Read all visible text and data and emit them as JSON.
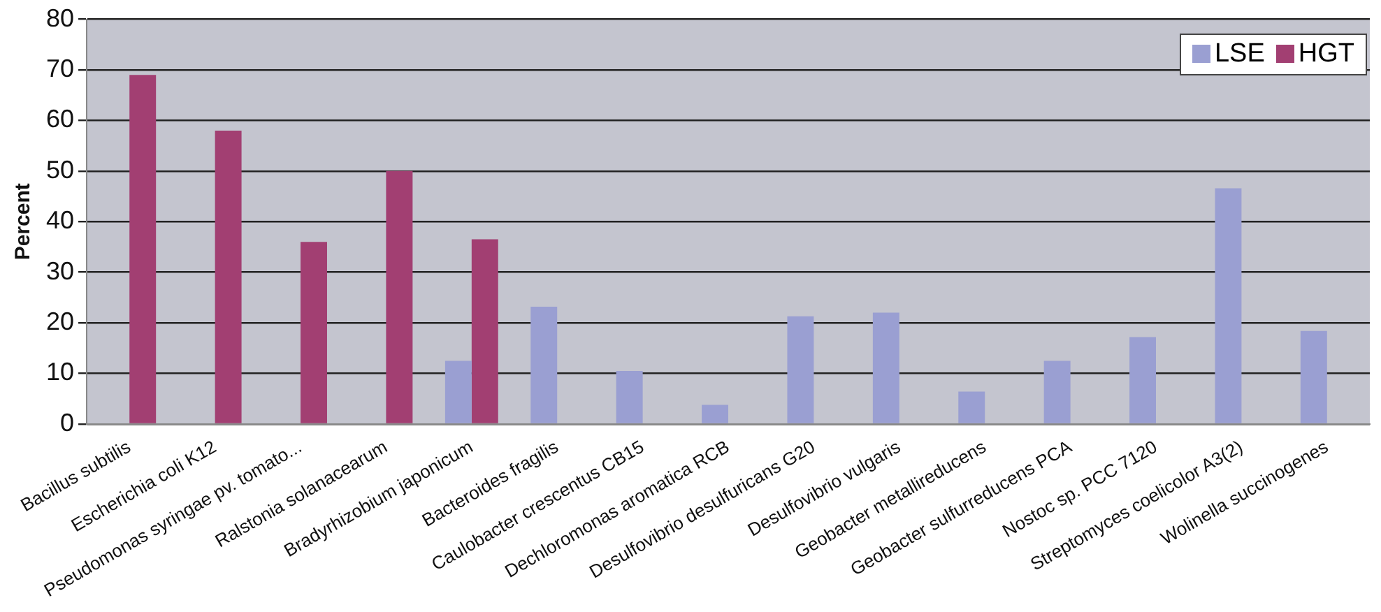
{
  "chart_data": {
    "type": "bar",
    "ylabel": "Percent",
    "categories": [
      "Bacillus subtilis",
      "Escherichia coli K12",
      "Pseudomonas syringae pv. tomato...",
      "Ralstonia solanacearum",
      "Bradyrhizobium japonicum",
      "Bacteroides fragilis",
      "Caulobacter crescentus CB15",
      "Dechloromonas aromatica RCB",
      "Desulfovibrio desulfuricans G20",
      "Desulfovibrio vulgaris",
      "Geobacter metallireducens",
      "Geobacter sulfurreducens PCA",
      "Nostoc sp. PCC 7120",
      "Streptomyces coelicolor A3(2)",
      "Wolinella succinogenes"
    ],
    "series": [
      {
        "name": "LSE",
        "color": "#9a9fd2",
        "values": [
          null,
          null,
          null,
          null,
          12.5,
          23.2,
          10.5,
          3.8,
          21.3,
          22,
          6.4,
          12.5,
          17.2,
          46.6,
          18.4
        ]
      },
      {
        "name": "HGT",
        "color": "#a23f72",
        "values": [
          69,
          58,
          36,
          50,
          36.5,
          null,
          null,
          null,
          null,
          null,
          null,
          null,
          null,
          null,
          null
        ]
      }
    ],
    "ylim": [
      0,
      80
    ],
    "yticks": [
      0,
      10,
      20,
      30,
      40,
      50,
      60,
      70,
      80
    ],
    "grid": "y",
    "legend": "top right"
  }
}
